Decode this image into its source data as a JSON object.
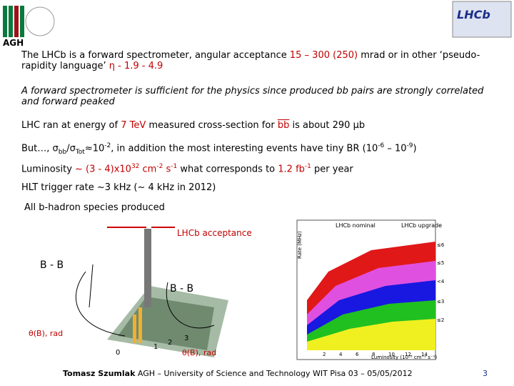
{
  "header": {
    "logo_text": "AGH"
  },
  "body": {
    "p1": [
      "The LHCb is a forward spectrometer, angular acceptance ",
      "15 – 300 (250)",
      " mrad or in other ‘pseudo-rapidity language’ ",
      "η - 1.9 - 4.9"
    ],
    "p2": "A forward spectrometer is sufficient for the physics since produced bb pairs are strongly correlated and forward peaked",
    "p3": [
      "LHC ran at energy of ",
      "7 TeV",
      " measured cross-section for ",
      "bb",
      " is about 290 μb"
    ],
    "p4": [
      "But…, σ",
      "bb",
      "/σ",
      "Tot",
      "≈10",
      "-2",
      ", in addition the most interesting events have tiny BR (10",
      "-6",
      " – 10",
      "-9",
      ")"
    ],
    "p5": [
      "Luminosity ",
      "~ (3 - 4)x10",
      "32",
      " cm",
      "-2",
      " s",
      "-1",
      " what corresponds to ",
      "1.2 fb",
      "-1",
      " per year"
    ],
    "p6": "HLT trigger rate ~3 kHz (~ 4 kHz in 2012)",
    "p7": "All b-hadron species produced"
  },
  "figure_left": {
    "acceptance_label": "LHCb acceptance",
    "pair_label_left": "B - B",
    "pair_label_right": "B - B",
    "axis_left": "θ(B), rad",
    "axis_right": "θ(B), rad",
    "ticks": [
      "0",
      "1",
      "2",
      "3"
    ]
  },
  "figure_right": {
    "legend_nominal": "LHCb nominal",
    "legend_upgrade": "LHCb upgrade",
    "y_label": "Rate (MHz)",
    "x_label": "Luminosity (10³³ cm⁻² s⁻¹)",
    "x_ticks": [
      "2",
      "4",
      "6",
      "8",
      "10",
      "12",
      "14"
    ],
    "band_labels": [
      "≤6",
      "≤5",
      "<4",
      "≤3",
      "≤2"
    ]
  },
  "footer": {
    "author": "Tomasz Szumlak",
    "text": " AGH – University of Science and Technology WIT Pisa 03 – 05/05/2012",
    "page": "3"
  }
}
